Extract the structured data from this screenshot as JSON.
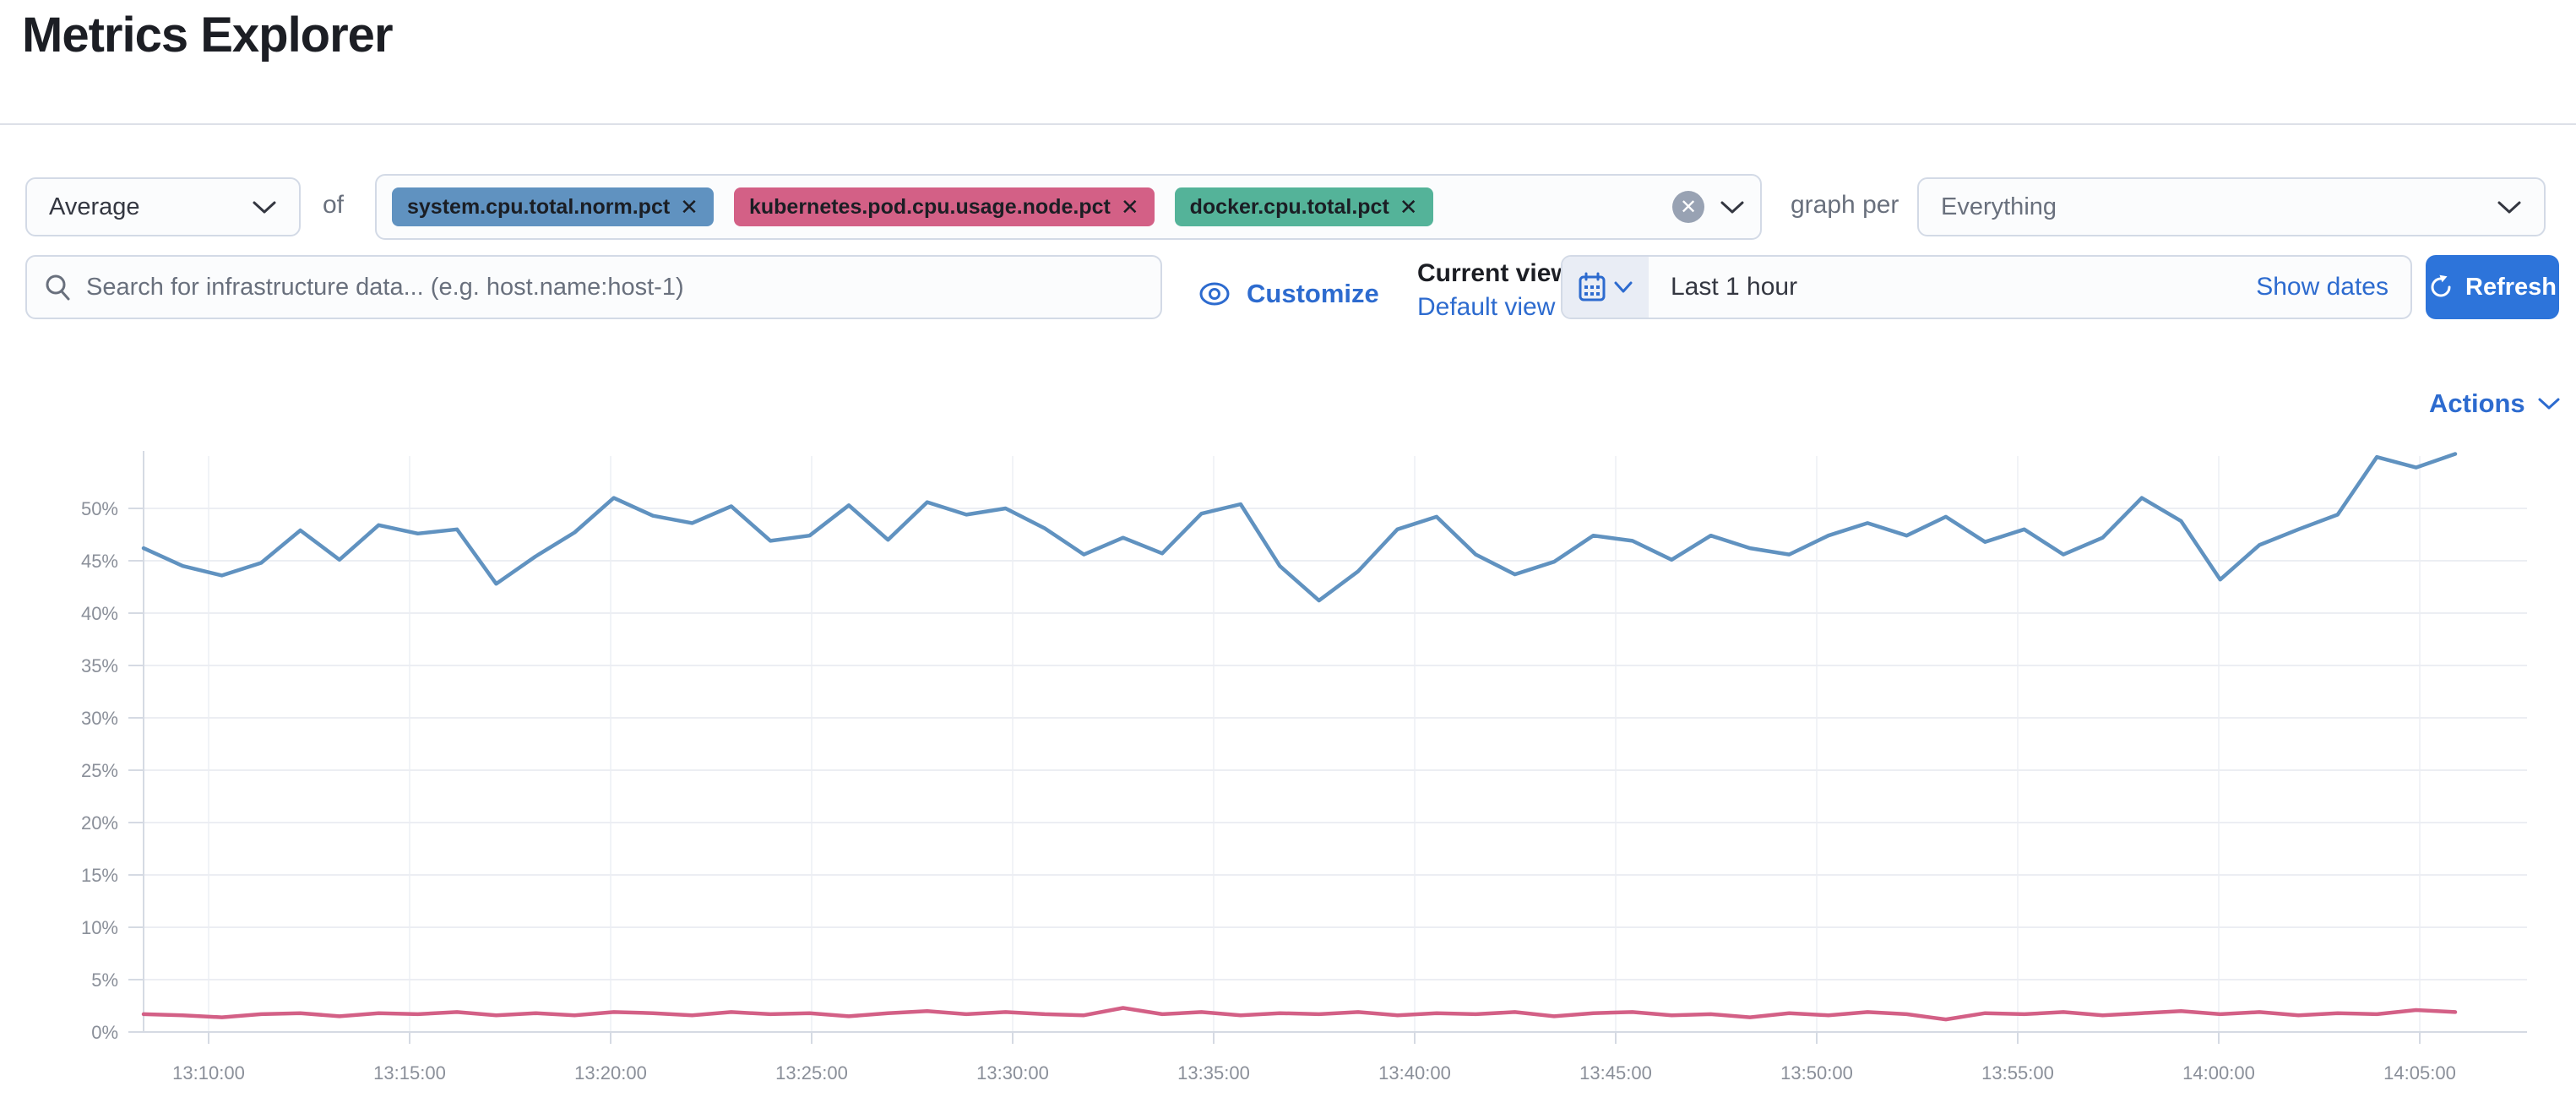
{
  "page": {
    "title": "Metrics Explorer"
  },
  "toolbar": {
    "aggregation": {
      "value": "Average"
    },
    "of_label": "of",
    "metrics": [
      {
        "label": "system.cpu.total.norm.pct",
        "color": "#6092C0"
      },
      {
        "label": "kubernetes.pod.cpu.usage.node.pct",
        "color": "#D36086"
      },
      {
        "label": "docker.cpu.total.pct",
        "color": "#54B399"
      }
    ],
    "clear_icon": "cross-in-circle",
    "graph_per_label": "graph per",
    "group_by": {
      "value": "Everything"
    }
  },
  "searchbar": {
    "placeholder": "Search for infrastructure data... (e.g. host.name:host-1)"
  },
  "view_controls": {
    "customize_label": "Customize",
    "current_view_label": "Current view",
    "view_name": "Default view"
  },
  "datepicker": {
    "range_label": "Last 1 hour",
    "show_dates_label": "Show dates",
    "refresh_label": "Refresh"
  },
  "chart_actions": {
    "actions_label": "Actions"
  },
  "chart_data": {
    "type": "line",
    "title": "",
    "xlabel": "",
    "ylabel": "",
    "ylim": [
      0,
      55
    ],
    "grid": true,
    "legend": "none",
    "y_tick_labels": [
      "0%",
      "5%",
      "10%",
      "15%",
      "20%",
      "25%",
      "30%",
      "35%",
      "40%",
      "45%",
      "50%"
    ],
    "x_tick_labels": [
      "13:10:00",
      "13:15:00",
      "13:20:00",
      "13:25:00",
      "13:30:00",
      "13:35:00",
      "13:40:00",
      "13:45:00",
      "13:50:00",
      "13:55:00",
      "14:00:00",
      "14:05:00"
    ],
    "x_range_note": "data drawn from ~13:08 to ~14:06 at 1-minute steps",
    "series": [
      {
        "name": "system.cpu.total.norm.pct",
        "color": "#6092C0",
        "unit": "%",
        "values": [
          46.2,
          44.5,
          43.6,
          44.8,
          47.9,
          45.1,
          48.4,
          47.6,
          48.0,
          42.8,
          45.4,
          47.7,
          51.0,
          49.3,
          48.6,
          50.2,
          46.9,
          47.4,
          50.3,
          47.0,
          50.6,
          49.4,
          50.0,
          48.1,
          45.6,
          47.2,
          45.7,
          49.5,
          50.4,
          44.5,
          41.2,
          44.0,
          48.0,
          49.2,
          45.6,
          43.7,
          44.9,
          47.4,
          46.9,
          45.1,
          47.4,
          46.2,
          45.6,
          47.4,
          48.6,
          47.4,
          49.2,
          46.8,
          48.0,
          45.6,
          47.2,
          51.0,
          48.8,
          43.2,
          46.5,
          48.0,
          49.4,
          54.9,
          53.9,
          55.2
        ]
      },
      {
        "name": "kubernetes.pod.cpu.usage.node.pct",
        "color": "#D36086",
        "unit": "%",
        "values": [
          1.7,
          1.6,
          1.4,
          1.7,
          1.8,
          1.5,
          1.8,
          1.7,
          1.9,
          1.6,
          1.8,
          1.6,
          1.9,
          1.8,
          1.6,
          1.9,
          1.7,
          1.8,
          1.5,
          1.8,
          2.0,
          1.7,
          1.9,
          1.7,
          1.6,
          2.3,
          1.7,
          1.9,
          1.6,
          1.8,
          1.7,
          1.9,
          1.6,
          1.8,
          1.7,
          1.9,
          1.5,
          1.8,
          1.9,
          1.6,
          1.7,
          1.4,
          1.8,
          1.6,
          1.9,
          1.7,
          1.2,
          1.8,
          1.7,
          1.9,
          1.6,
          1.8,
          2.0,
          1.7,
          1.9,
          1.6,
          1.8,
          1.7,
          2.1,
          1.9
        ]
      }
    ]
  },
  "colors": {
    "link_blue": "#2d6bcf",
    "primary_button": "#2d74da",
    "border": "#d3dae6",
    "grid_line": "#eceef3",
    "axis_line": "#d5dae3",
    "axis_label": "#8a8f99"
  }
}
